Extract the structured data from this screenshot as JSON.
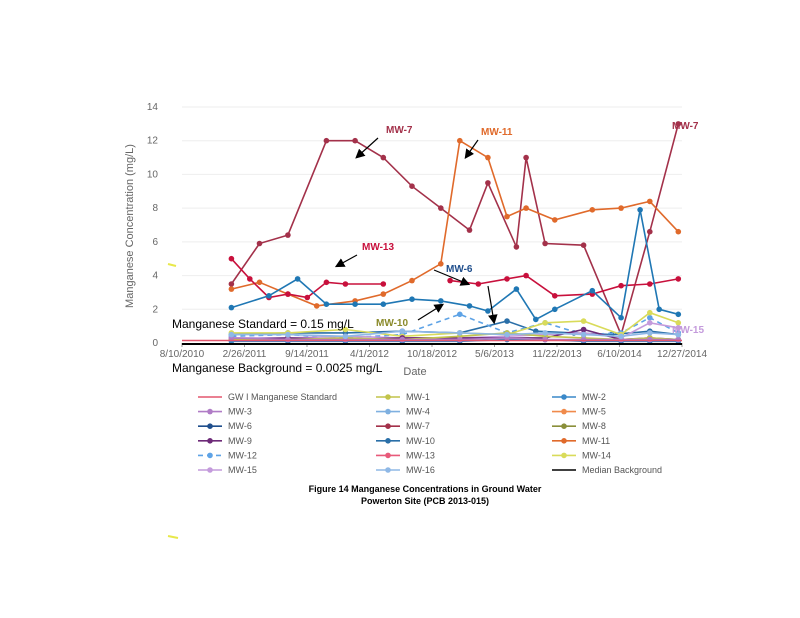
{
  "chart_data": {
    "type": "line",
    "ylabel": "Manganese Concentration (mg/L)",
    "xlabel": "Date",
    "ylim": [
      0,
      14
    ],
    "yticks": [
      "0",
      "2",
      "4",
      "6",
      "8",
      "10",
      "12",
      "14"
    ],
    "xticks": [
      "8/10/2010",
      "2/26/2011",
      "9/14/2011",
      "4/1/2012",
      "10/18/2012",
      "5/6/2013",
      "11/22/2013",
      "6/10/2014",
      "12/27/2014"
    ],
    "series": [
      {
        "name": "MW-7",
        "color": "#a3314a",
        "dashed": false,
        "points": [
          [
            "2011-01",
            3.5
          ],
          [
            "2011-04",
            5.9
          ],
          [
            "2011-07",
            6.4
          ],
          [
            "2011-11",
            12.0
          ],
          [
            "2012-02",
            12.0
          ],
          [
            "2012-05",
            11.0
          ],
          [
            "2012-08",
            9.3
          ],
          [
            "2012-11",
            8.0
          ],
          [
            "2013-02",
            6.7
          ],
          [
            "2013-04",
            9.5
          ],
          [
            "2013-07",
            5.7
          ],
          [
            "2013-08",
            11.0
          ],
          [
            "2013-10",
            5.9
          ],
          [
            "2014-02",
            5.8
          ],
          [
            "2014-06",
            0.5
          ],
          [
            "2014-09",
            6.6
          ],
          [
            "2014-12",
            13.0
          ]
        ]
      },
      {
        "name": "MW-11",
        "color": "#e06a2b",
        "dashed": false,
        "points": [
          [
            "2011-01",
            3.2
          ],
          [
            "2011-04",
            3.6
          ],
          [
            "2011-07",
            2.9
          ],
          [
            "2011-10",
            2.2
          ],
          [
            "2012-02",
            2.5
          ],
          [
            "2012-05",
            2.9
          ],
          [
            "2012-08",
            3.7
          ],
          [
            "2012-11",
            4.7
          ],
          [
            "2013-01",
            12.0
          ],
          [
            "2013-04",
            11.0
          ],
          [
            "2013-06",
            7.5
          ],
          [
            "2013-08",
            8.0
          ],
          [
            "2013-11",
            7.3
          ],
          [
            "2014-03",
            7.9
          ],
          [
            "2014-06",
            8.0
          ],
          [
            "2014-09",
            8.4
          ],
          [
            "2014-12",
            6.6
          ]
        ]
      },
      {
        "name": "MW-13",
        "color": "#c8103c",
        "dashed": false,
        "points": [
          [
            "2011-01",
            5.0
          ],
          [
            "2011-03",
            3.8
          ],
          [
            "2011-05",
            2.7
          ],
          [
            "2011-07",
            2.9
          ],
          [
            "2011-09",
            2.7
          ],
          [
            "2011-11",
            3.6
          ],
          [
            "2012-01",
            3.5
          ],
          [
            "2012-05",
            3.5
          ]
        ]
      },
      {
        "name": "MW-13",
        "color": "#c8103c",
        "dashed": false,
        "points": [
          [
            "2012-12",
            3.7
          ],
          [
            "2013-03",
            3.5
          ],
          [
            "2013-06",
            3.8
          ],
          [
            "2013-08",
            4.0
          ],
          [
            "2013-11",
            2.8
          ],
          [
            "2014-03",
            2.9
          ],
          [
            "2014-06",
            3.4
          ],
          [
            "2014-09",
            3.5
          ],
          [
            "2014-12",
            3.8
          ]
        ]
      },
      {
        "name": "MW-6",
        "color": "#1f77b4",
        "dashed": false,
        "points": [
          [
            "2011-01",
            2.1
          ],
          [
            "2011-05",
            2.8
          ],
          [
            "2011-08",
            3.8
          ],
          [
            "2011-11",
            2.3
          ],
          [
            "2012-02",
            2.3
          ],
          [
            "2012-05",
            2.3
          ],
          [
            "2012-08",
            2.6
          ],
          [
            "2012-11",
            2.5
          ],
          [
            "2013-02",
            2.2
          ],
          [
            "2013-04",
            1.9
          ],
          [
            "2013-07",
            3.2
          ],
          [
            "2013-09",
            1.4
          ],
          [
            "2013-11",
            2.0
          ],
          [
            "2014-03",
            3.1
          ],
          [
            "2014-06",
            1.5
          ],
          [
            "2014-08",
            7.9
          ],
          [
            "2014-10",
            2.0
          ],
          [
            "2014-12",
            1.7
          ]
        ]
      },
      {
        "name": "MW-10",
        "color": "#2a6fa8",
        "dashed": false,
        "points": [
          [
            "2011-01",
            0.5
          ],
          [
            "2011-07",
            0.6
          ],
          [
            "2012-01",
            0.6
          ],
          [
            "2012-07",
            0.7
          ],
          [
            "2013-01",
            0.6
          ],
          [
            "2013-06",
            1.3
          ],
          [
            "2013-09",
            0.7
          ],
          [
            "2014-01",
            0.6
          ],
          [
            "2014-05",
            0.5
          ],
          [
            "2014-09",
            0.7
          ],
          [
            "2014-12",
            0.5
          ]
        ]
      },
      {
        "name": "MW-12",
        "color": "#5ea3e6",
        "dashed": true,
        "points": [
          [
            "2011-01",
            0.4
          ],
          [
            "2011-07",
            0.5
          ],
          [
            "2012-01",
            0.3
          ],
          [
            "2012-07",
            0.5
          ],
          [
            "2013-01",
            1.7
          ],
          [
            "2013-06",
            0.6
          ],
          [
            "2013-10",
            1.2
          ],
          [
            "2014-02",
            0.5
          ],
          [
            "2014-06",
            0.6
          ],
          [
            "2014-09",
            1.5
          ],
          [
            "2014-12",
            0.6
          ]
        ]
      },
      {
        "name": "MW-14",
        "color": "#d9db5a",
        "dashed": false,
        "points": [
          [
            "2011-01",
            0.6
          ],
          [
            "2011-07",
            0.6
          ],
          [
            "2012-01",
            0.8
          ],
          [
            "2012-07",
            0.4
          ],
          [
            "2013-01",
            0.6
          ],
          [
            "2013-06",
            0.5
          ],
          [
            "2013-10",
            1.2
          ],
          [
            "2014-02",
            1.3
          ],
          [
            "2014-06",
            0.5
          ],
          [
            "2014-09",
            1.8
          ],
          [
            "2014-12",
            1.2
          ]
        ]
      },
      {
        "name": "MW-15",
        "color": "#c49bdc",
        "dashed": false,
        "points": [
          [
            "2011-01",
            0.3
          ],
          [
            "2011-07",
            0.3
          ],
          [
            "2012-01",
            0.4
          ],
          [
            "2012-07",
            0.3
          ],
          [
            "2013-01",
            0.3
          ],
          [
            "2013-06",
            0.4
          ],
          [
            "2013-10",
            0.5
          ],
          [
            "2014-02",
            0.6
          ],
          [
            "2014-06",
            0.3
          ],
          [
            "2014-09",
            1.2
          ],
          [
            "2014-12",
            0.9
          ]
        ]
      },
      {
        "name": "MW-9",
        "color": "#6d2a78",
        "dashed": false,
        "points": [
          [
            "2011-01",
            0.2
          ],
          [
            "2011-07",
            0.3
          ],
          [
            "2012-01",
            0.2
          ],
          [
            "2012-07",
            0.3
          ],
          [
            "2013-01",
            0.3
          ],
          [
            "2013-06",
            0.3
          ],
          [
            "2013-10",
            0.3
          ],
          [
            "2014-02",
            0.8
          ],
          [
            "2014-06",
            0.2
          ],
          [
            "2014-09",
            0.3
          ],
          [
            "2014-12",
            0.2
          ]
        ]
      },
      {
        "name": "MW-1",
        "color": "#c2c44a",
        "dashed": false,
        "points": [
          [
            "2011-01",
            0.2
          ],
          [
            "2011-07",
            0.2
          ],
          [
            "2012-01",
            0.3
          ],
          [
            "2012-07",
            0.2
          ],
          [
            "2013-01",
            0.4
          ],
          [
            "2013-06",
            0.6
          ],
          [
            "2013-10",
            0.4
          ],
          [
            "2014-02",
            0.3
          ],
          [
            "2014-06",
            0.2
          ],
          [
            "2014-09",
            0.3
          ],
          [
            "2014-12",
            0.2
          ]
        ]
      },
      {
        "name": "MW-2",
        "color": "#3a89c9",
        "dashed": false,
        "points": [
          [
            "2011-01",
            0.1
          ],
          [
            "2011-07",
            0.1
          ],
          [
            "2012-01",
            0.1
          ],
          [
            "2012-07",
            0.1
          ],
          [
            "2013-01",
            0.1
          ],
          [
            "2013-06",
            0.2
          ],
          [
            "2013-10",
            0.2
          ],
          [
            "2014-02",
            0.1
          ],
          [
            "2014-06",
            0.1
          ],
          [
            "2014-09",
            0.1
          ],
          [
            "2014-12",
            0.1
          ]
        ]
      },
      {
        "name": "MW-3",
        "color": "#b07cc6",
        "dashed": false,
        "points": [
          [
            "2011-01",
            0.3
          ],
          [
            "2011-07",
            0.2
          ],
          [
            "2012-01",
            0.2
          ],
          [
            "2012-07",
            0.2
          ],
          [
            "2013-01",
            0.2
          ],
          [
            "2013-06",
            0.3
          ],
          [
            "2013-10",
            0.2
          ],
          [
            "2014-02",
            0.2
          ],
          [
            "2014-06",
            0.2
          ],
          [
            "2014-09",
            0.2
          ],
          [
            "2014-12",
            0.2
          ]
        ]
      },
      {
        "name": "MW-16",
        "color": "#8fb8e6",
        "dashed": false,
        "points": [
          [
            "2011-01",
            0.5
          ],
          [
            "2011-07",
            0.5
          ],
          [
            "2012-01",
            0.4
          ],
          [
            "2012-07",
            0.7
          ],
          [
            "2013-01",
            0.6
          ],
          [
            "2013-06",
            0.5
          ],
          [
            "2013-10",
            0.6
          ],
          [
            "2014-02",
            0.5
          ],
          [
            "2014-06",
            0.4
          ],
          [
            "2014-09",
            0.6
          ],
          [
            "2014-12",
            0.5
          ]
        ]
      }
    ],
    "standard": {
      "label": "Manganese Standard = 0.15 mg/L",
      "value": 0.15,
      "color": "#e3566e"
    },
    "background": {
      "label": "Manganese Background = 0.0025 mg/L",
      "value": 0.0025,
      "color": "#000000"
    },
    "annotations": [
      {
        "text": "MW-7",
        "color": "#a3314a"
      },
      {
        "text": "MW-11",
        "color": "#e06a2b"
      },
      {
        "text": "MW-7",
        "color": "#a3314a"
      },
      {
        "text": "MW-13",
        "color": "#c8103c"
      },
      {
        "text": "MW-6",
        "color": "#1f4e8c"
      },
      {
        "text": "MW-10",
        "color": "#8a8a2a"
      },
      {
        "text": "MW-15",
        "color": "#c49bdc"
      }
    ],
    "legend": [
      {
        "label": "GW I Manganese Standard",
        "color": "#e3566e",
        "marker": false,
        "dashed": false
      },
      {
        "label": "MW-1",
        "color": "#c2c44a",
        "marker": true,
        "dashed": false
      },
      {
        "label": "MW-2",
        "color": "#3a89c9",
        "marker": true,
        "dashed": false
      },
      {
        "label": "MW-3",
        "color": "#b07cc6",
        "marker": true,
        "dashed": false
      },
      {
        "label": "MW-4",
        "color": "#7fb0e0",
        "marker": true,
        "dashed": false
      },
      {
        "label": "MW-5",
        "color": "#f08a4b",
        "marker": true,
        "dashed": false
      },
      {
        "label": "MW-6",
        "color": "#1f4e8c",
        "marker": true,
        "dashed": false
      },
      {
        "label": "MW-7",
        "color": "#a3314a",
        "marker": true,
        "dashed": false
      },
      {
        "label": "MW-8",
        "color": "#8a8f3a",
        "marker": true,
        "dashed": false
      },
      {
        "label": "MW-9",
        "color": "#6d2a78",
        "marker": true,
        "dashed": false
      },
      {
        "label": "MW-10",
        "color": "#2a6fa8",
        "marker": true,
        "dashed": false
      },
      {
        "label": "MW-11",
        "color": "#e06a2b",
        "marker": true,
        "dashed": false
      },
      {
        "label": "MW-12",
        "color": "#5ea3e6",
        "marker": true,
        "dashed": true
      },
      {
        "label": "MW-13",
        "color": "#e85a7a",
        "marker": true,
        "dashed": false
      },
      {
        "label": "MW-14",
        "color": "#d9db5a",
        "marker": true,
        "dashed": false
      },
      {
        "label": "MW-15",
        "color": "#c49bdc",
        "marker": true,
        "dashed": false
      },
      {
        "label": "MW-16",
        "color": "#8fb8e6",
        "marker": true,
        "dashed": false
      },
      {
        "label": "Median Background",
        "color": "#000000",
        "marker": false,
        "dashed": false
      }
    ],
    "caption_line1": "Figure 14   Manganese Concentrations in Ground Water",
    "caption_line2": "Powerton Site (PCB 2013-015)"
  }
}
